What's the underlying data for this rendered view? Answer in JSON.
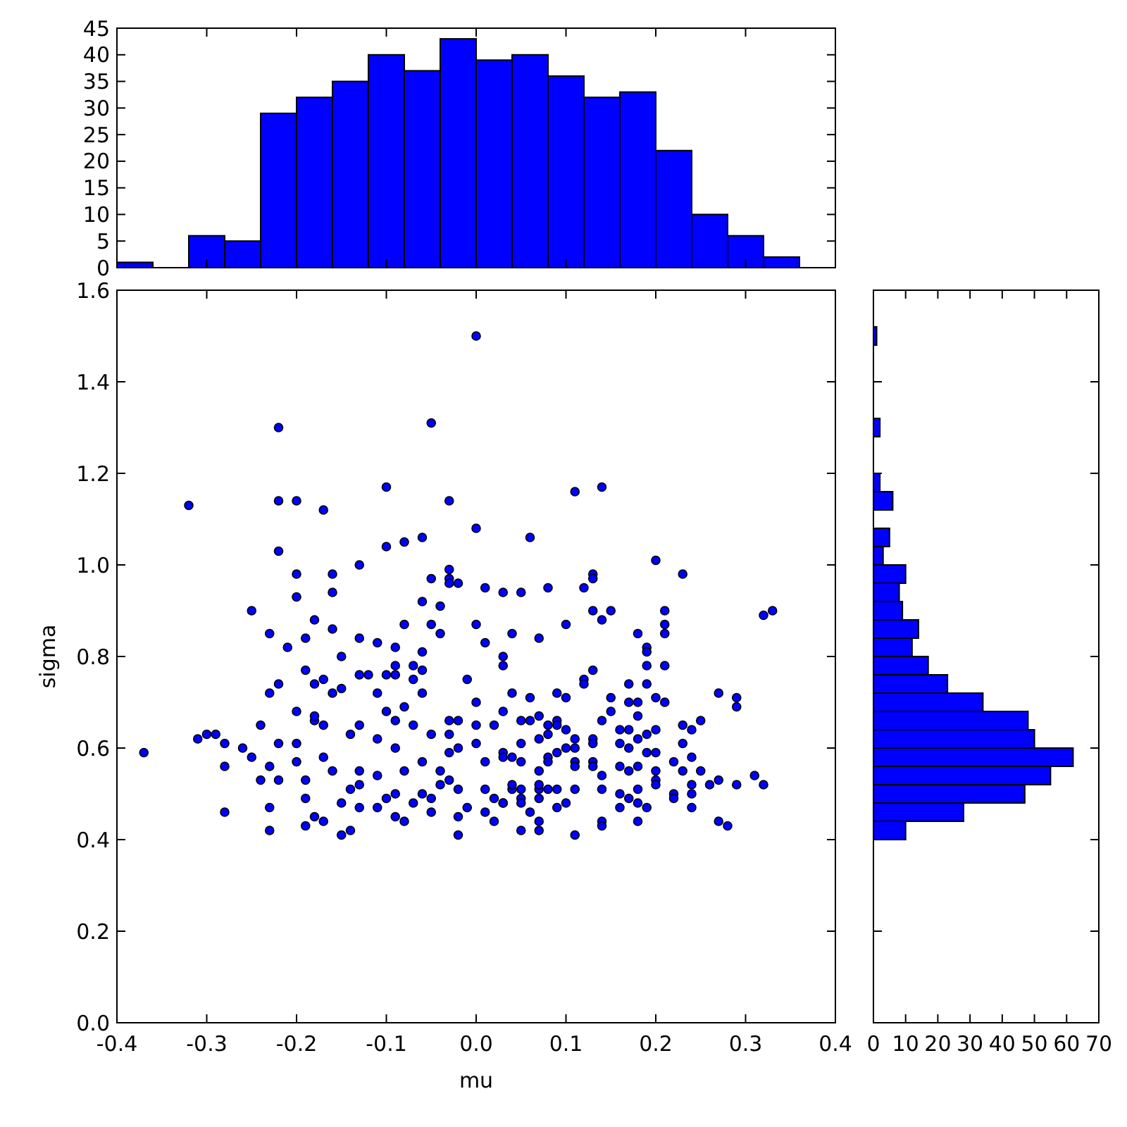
{
  "chart_data": [
    {
      "type": "histogram",
      "bins": [
        -0.4,
        -0.36,
        -0.32,
        -0.28,
        -0.24,
        -0.2,
        -0.16,
        -0.12,
        -0.08,
        -0.04,
        0,
        0.04,
        0.08,
        0.12,
        0.16,
        0.2,
        0.24,
        0.28,
        0.32,
        0.36
      ],
      "values": [
        1,
        0,
        6,
        5,
        29,
        32,
        35,
        40,
        37,
        43,
        39,
        40,
        36,
        32,
        33,
        22,
        10,
        6,
        2
      ],
      "color": "#0000ff",
      "xlim": [
        -0.4,
        0.4
      ],
      "ylim": [
        0,
        45
      ],
      "xticks": [
        -0.4,
        -0.3,
        -0.2,
        -0.1,
        0,
        0.1,
        0.2,
        0.3,
        0.4
      ],
      "yticks": [
        0,
        5,
        10,
        15,
        20,
        25,
        30,
        35,
        40,
        45
      ],
      "tick_labels": "y"
    },
    {
      "type": "scatter",
      "xlabel": "mu",
      "ylabel": "sigma",
      "color": "#0000ff",
      "marker": "circle",
      "xlim": [
        -0.4,
        0.4
      ],
      "ylim": [
        0,
        1.6
      ],
      "xticks": [
        -0.4,
        -0.3,
        -0.2,
        -0.1,
        {
          "value": 0,
          "label": "0.0"
        },
        0.1,
        0.2,
        0.3,
        0.4
      ],
      "yticks": [
        {
          "value": 0,
          "label": "0.0"
        },
        0.2,
        0.4,
        0.6,
        0.8,
        {
          "value": 1,
          "label": "1.0"
        },
        1.2,
        1.4,
        1.6
      ],
      "x": [
        0.0,
        -0.22,
        -0.05,
        -0.32,
        -0.22,
        -0.2,
        -0.17,
        -0.1,
        -0.03,
        0.0,
        -0.22,
        -0.1,
        -0.08,
        -0.06,
        -0.13,
        -0.2,
        -0.16,
        -0.2,
        -0.16,
        -0.25,
        -0.18,
        -0.03,
        -0.03,
        -0.03,
        -0.02,
        -0.05,
        -0.06,
        -0.04,
        0.01,
        0.03,
        -0.23,
        -0.19,
        -0.16,
        -0.21,
        -0.15,
        -0.08,
        -0.05,
        -0.04,
        0.0,
        0.01,
        -0.13,
        -0.11,
        -0.09,
        -0.37,
        -0.31,
        -0.3,
        -0.29,
        -0.28,
        -0.28,
        -0.28,
        -0.26,
        -0.25,
        -0.24,
        -0.23,
        -0.24,
        -0.23,
        -0.23,
        -0.23,
        -0.22,
        -0.22,
        -0.22,
        -0.2,
        -0.2,
        -0.2,
        -0.19,
        -0.19,
        -0.19,
        -0.19,
        -0.18,
        -0.18,
        -0.18,
        -0.18,
        -0.17,
        -0.17,
        -0.17,
        -0.17,
        -0.16,
        -0.16,
        -0.15,
        -0.15,
        -0.15,
        -0.14,
        -0.14,
        -0.14,
        -0.13,
        -0.13,
        -0.13,
        -0.13,
        -0.13,
        -0.12,
        -0.11,
        -0.11,
        -0.11,
        -0.11,
        -0.1,
        -0.1,
        -0.09,
        -0.1,
        -0.09,
        -0.09,
        -0.09,
        -0.09,
        -0.09,
        -0.08,
        -0.08,
        -0.08,
        -0.07,
        -0.07,
        -0.07,
        -0.07,
        -0.06,
        -0.06,
        -0.06,
        -0.06,
        -0.06,
        -0.05,
        -0.05,
        -0.05,
        -0.04,
        -0.04,
        -0.03,
        -0.03,
        -0.03,
        -0.03,
        -0.02,
        -0.02,
        -0.02,
        -0.02,
        -0.02,
        -0.01,
        -0.01,
        0.0,
        0.0,
        0.0,
        0.01,
        0.01,
        0.01,
        0.02,
        0.02,
        0.02,
        0.03,
        0.03,
        0.03,
        0.11,
        0.14,
        0.06,
        0.2,
        0.23,
        0.05,
        0.08,
        0.12,
        0.13,
        0.13,
        0.13,
        0.15,
        0.14,
        0.21,
        0.21,
        0.21,
        0.32,
        0.33,
        0.04,
        0.07,
        0.1,
        0.18,
        0.19,
        0.19,
        0.03,
        0.03,
        0.21,
        0.12,
        0.12,
        0.13,
        0.17,
        0.19,
        0.19,
        0.27,
        0.29,
        0.29,
        0.04,
        0.06,
        0.09,
        0.1,
        0.15,
        0.15,
        0.14,
        0.17,
        0.18,
        0.2,
        0.21,
        0.18,
        0.05,
        0.06,
        0.07,
        0.08,
        0.09,
        0.09,
        0.08,
        0.07,
        0.1,
        0.11,
        0.13,
        0.13,
        0.16,
        0.17,
        0.18,
        0.19,
        0.2,
        0.23,
        0.24,
        0.25,
        0.23,
        0.16,
        0.17,
        0.19,
        0.2,
        0.03,
        0.04,
        0.05,
        0.05,
        0.08,
        0.08,
        0.09,
        0.1,
        0.11,
        0.11,
        0.11,
        0.13,
        0.13,
        0.14,
        0.16,
        0.17,
        0.18,
        0.2,
        0.2,
        0.2,
        0.22,
        0.23,
        0.24,
        0.25,
        0.27,
        0.26,
        0.24,
        0.24,
        0.24,
        0.29,
        0.31,
        0.32,
        0.27,
        0.28,
        0.22,
        0.22,
        0.18,
        0.16,
        0.17,
        0.18,
        0.19,
        0.18,
        0.16,
        0.14,
        0.14,
        0.14,
        0.11,
        0.11,
        0.1,
        0.09,
        0.08,
        0.09,
        0.07,
        0.07,
        0.07,
        0.07,
        0.06,
        0.07,
        0.07,
        0.05,
        0.05,
        0.05,
        0.05,
        0.04,
        0.03,
        0.04
      ],
      "values": [
        1.5,
        1.3,
        1.31,
        1.13,
        1.14,
        1.14,
        1.12,
        1.17,
        1.14,
        1.08,
        1.03,
        1.04,
        1.05,
        1.06,
        1.0,
        0.98,
        0.98,
        0.93,
        0.94,
        0.9,
        0.88,
        0.99,
        0.97,
        0.96,
        0.96,
        0.97,
        0.92,
        0.91,
        0.95,
        0.94,
        0.85,
        0.84,
        0.86,
        0.82,
        0.8,
        0.87,
        0.87,
        0.85,
        0.87,
        0.83,
        0.84,
        0.83,
        0.82,
        0.59,
        0.62,
        0.63,
        0.63,
        0.61,
        0.56,
        0.46,
        0.6,
        0.58,
        0.53,
        0.72,
        0.65,
        0.47,
        0.42,
        0.56,
        0.61,
        0.53,
        0.74,
        0.68,
        0.61,
        0.57,
        0.53,
        0.49,
        0.77,
        0.43,
        0.45,
        0.66,
        0.67,
        0.74,
        0.75,
        0.58,
        0.44,
        0.65,
        0.72,
        0.55,
        0.48,
        0.41,
        0.73,
        0.63,
        0.51,
        0.42,
        0.47,
        0.76,
        0.65,
        0.52,
        0.55,
        0.76,
        0.72,
        0.62,
        0.54,
        0.47,
        0.68,
        0.76,
        0.78,
        0.49,
        0.6,
        0.45,
        0.76,
        0.66,
        0.5,
        0.44,
        0.69,
        0.55,
        0.75,
        0.48,
        0.65,
        0.78,
        0.5,
        0.81,
        0.57,
        0.77,
        0.72,
        0.49,
        0.46,
        0.63,
        0.52,
        0.55,
        0.66,
        0.53,
        0.59,
        0.63,
        0.51,
        0.45,
        0.41,
        0.66,
        0.6,
        0.47,
        0.75,
        0.65,
        0.7,
        0.61,
        0.57,
        0.51,
        0.46,
        0.44,
        0.65,
        0.49,
        0.59,
        0.48,
        0.68,
        1.16,
        1.17,
        1.06,
        1.01,
        0.98,
        0.94,
        0.95,
        0.95,
        0.98,
        0.97,
        0.9,
        0.9,
        0.88,
        0.9,
        0.87,
        0.85,
        0.89,
        0.9,
        0.85,
        0.84,
        0.87,
        0.85,
        0.82,
        0.81,
        0.8,
        0.78,
        0.78,
        0.75,
        0.74,
        0.77,
        0.74,
        0.74,
        0.78,
        0.72,
        0.71,
        0.69,
        0.72,
        0.71,
        0.72,
        0.71,
        0.71,
        0.68,
        0.66,
        0.7,
        0.67,
        0.71,
        0.7,
        0.7,
        0.66,
        0.66,
        0.67,
        0.65,
        0.66,
        0.65,
        0.63,
        0.62,
        0.64,
        0.62,
        0.62,
        0.61,
        0.64,
        0.64,
        0.62,
        0.63,
        0.64,
        0.65,
        0.64,
        0.66,
        0.61,
        0.61,
        0.6,
        0.59,
        0.59,
        0.58,
        0.58,
        0.61,
        0.57,
        0.58,
        0.57,
        0.59,
        0.6,
        0.6,
        0.57,
        0.56,
        0.57,
        0.56,
        0.54,
        0.56,
        0.55,
        0.56,
        0.55,
        0.53,
        0.52,
        0.57,
        0.55,
        0.58,
        0.55,
        0.53,
        0.52,
        0.52,
        0.5,
        0.47,
        0.52,
        0.54,
        0.52,
        0.44,
        0.43,
        0.5,
        0.49,
        0.51,
        0.5,
        0.49,
        0.48,
        0.47,
        0.44,
        0.47,
        0.51,
        0.44,
        0.43,
        0.41,
        0.51,
        0.48,
        0.51,
        0.51,
        0.47,
        0.49,
        0.51,
        0.52,
        0.55,
        0.46,
        0.44,
        0.42,
        0.42,
        0.49,
        0.48,
        0.51,
        0.51,
        0.48,
        0.52
      ]
    },
    {
      "type": "histogram",
      "orientation": "horizontal",
      "bins": [
        0.4,
        0.44,
        0.48,
        0.52,
        0.56,
        0.6,
        0.64,
        0.68,
        0.72,
        0.76,
        0.8,
        0.84,
        0.88,
        0.92,
        0.96,
        1,
        1.04,
        1.08,
        1.12,
        1.16,
        1.2,
        1.24,
        1.28,
        1.32,
        1.36,
        1.4,
        1.44,
        1.48,
        1.52
      ],
      "values": [
        10,
        28,
        47,
        55,
        62,
        50,
        48,
        34,
        23,
        17,
        12,
        14,
        9,
        8,
        10,
        3,
        5,
        0,
        6,
        2,
        0,
        0,
        2,
        0,
        0,
        0,
        0,
        1
      ],
      "color": "#0000ff",
      "xlim": [
        0,
        70
      ],
      "ylim": [
        0,
        1.6
      ],
      "xticks": [
        0,
        10,
        20,
        30,
        40,
        50,
        60,
        70
      ],
      "yticks": [
        0,
        0.2,
        0.4,
        0.6,
        0.8,
        1,
        1.2,
        1.4,
        1.6
      ],
      "tick_labels": "x"
    }
  ]
}
